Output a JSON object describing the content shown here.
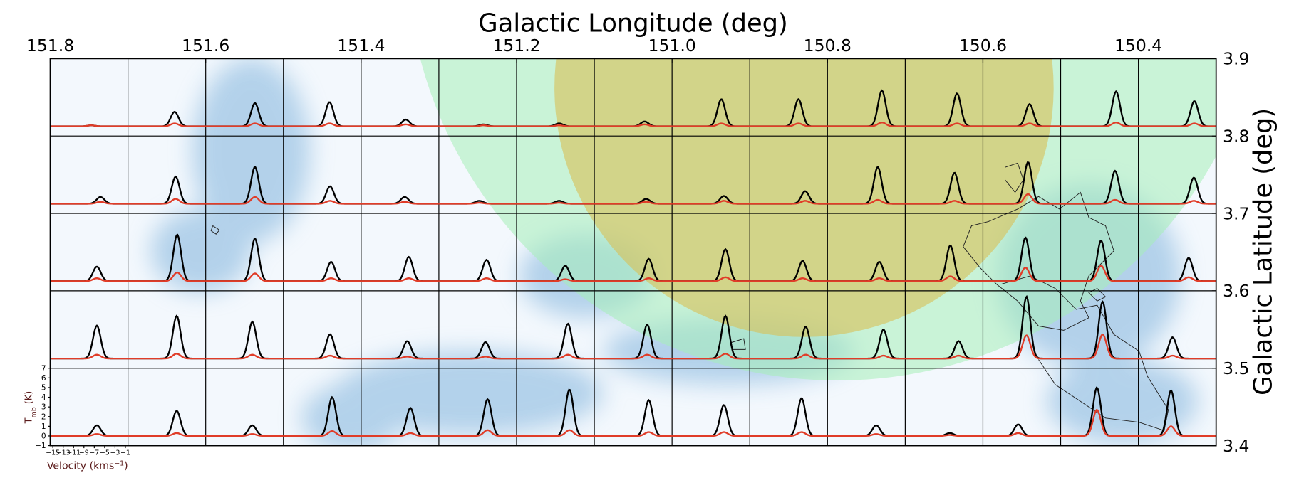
{
  "chart_data": {
    "type": "spectra-grid",
    "title": "Galactic Longitude (deg)",
    "ylabel": "Galactic Latitude (deg)",
    "xlim": [
      151.8,
      150.3
    ],
    "xticks": [
      151.8,
      151.6,
      151.4,
      151.2,
      {
        "value": 151.0,
        "label": "151.0"
      },
      150.8,
      150.6,
      150.4
    ],
    "ylim": [
      3.4,
      3.9
    ],
    "yticks": [
      3.4,
      3.5,
      3.6,
      3.7,
      3.8,
      3.9
    ],
    "inset": {
      "ylabel": {
        "main": "T",
        "sub": "mb",
        "unit": " (K)"
      },
      "xlabel": {
        "main": "Velocity (kms",
        "sup": "−1",
        "end": ")"
      },
      "xlim": [
        -15.5,
        -0.5
      ],
      "ylim": [
        -1,
        7
      ],
      "xticks": [
        {
          "value": -15,
          "label": "−15"
        },
        {
          "value": -13,
          "label": "−13"
        },
        {
          "value": -11,
          "label": "−11"
        },
        {
          "value": -9,
          "label": "−9"
        },
        {
          "value": -7,
          "label": "−7"
        },
        {
          "value": -5,
          "label": "−5"
        },
        {
          "value": -3,
          "label": "−3"
        },
        {
          "value": -1,
          "label": "−1"
        }
      ],
      "yticks": [
        {
          "value": -1,
          "label": "−1"
        },
        0,
        1,
        2,
        3,
        4,
        5,
        6,
        7
      ]
    },
    "velocities": [
      [
        -7.6,
        -6.5,
        -6.0,
        -6.6,
        -6.9,
        -6.9,
        -7.3,
        -5.8,
        -6.0,
        -6.1,
        -5.0,
        -5.5,
        -6.5,
        -4.8,
        -4.7
      ],
      [
        -5.8,
        -6.3,
        -6.0,
        -6.5,
        -7.1,
        -7.7,
        -7.3,
        -5.5,
        -5.5,
        -4.8,
        -5.8,
        -6.0,
        -6.8,
        -5.0,
        -4.8
      ],
      [
        -6.5,
        -6.0,
        -6.0,
        -6.3,
        -6.3,
        -6.3,
        -6.1,
        -5.0,
        -5.2,
        -5.3,
        -5.5,
        -6.8,
        -7.3,
        -7.7,
        -5.8
      ],
      [
        -6.5,
        -6.1,
        -6.5,
        -6.5,
        -6.6,
        -6.5,
        -5.6,
        -5.3,
        -5.2,
        -4.7,
        -4.7,
        -5.2,
        -7.1,
        -7.4,
        -8.9
      ],
      [
        -6.5,
        -6.1,
        -6.5,
        -6.1,
        -6.0,
        -6.1,
        -5.3,
        -5.0,
        -5.5,
        -5.5,
        -6.1,
        -6.9,
        -8.7,
        -8.5,
        -9.2
      ]
    ],
    "series": [
      {
        "color": "#000000",
        "values": [
          [
            0.1,
            1.5,
            2.4,
            2.5,
            0.7,
            0.2,
            0.3,
            0.5,
            2.8,
            2.8,
            3.7,
            3.4,
            2.3,
            3.6,
            2.6
          ],
          [
            0.7,
            2.8,
            3.8,
            1.8,
            0.7,
            0.3,
            0.3,
            0.5,
            0.8,
            1.3,
            3.8,
            3.2,
            4.3,
            3.4,
            2.7
          ],
          [
            1.5,
            4.8,
            4.4,
            2.0,
            2.5,
            2.2,
            1.6,
            2.3,
            3.3,
            2.1,
            2.0,
            3.7,
            4.5,
            4.2,
            2.4
          ],
          [
            3.4,
            4.4,
            3.8,
            2.5,
            1.8,
            1.7,
            3.6,
            3.5,
            4.4,
            3.3,
            3.0,
            1.8,
            6.4,
            5.9,
            2.2
          ],
          [
            1.1,
            2.6,
            1.1,
            4.0,
            2.9,
            3.8,
            4.8,
            3.7,
            3.2,
            3.9,
            1.1,
            0.3,
            1.2,
            5.0,
            4.7
          ]
        ]
      },
      {
        "color": "#e03c28",
        "values": [
          [
            0.1,
            0.3,
            0.3,
            0.3,
            0.2,
            0.1,
            0.1,
            0.2,
            0.3,
            0.3,
            0.4,
            0.3,
            0.3,
            0.4,
            0.3
          ],
          [
            0.2,
            0.5,
            0.7,
            0.3,
            0.2,
            0.1,
            0.1,
            0.2,
            0.3,
            0.3,
            0.4,
            0.3,
            1.0,
            0.4,
            0.3
          ],
          [
            0.3,
            0.9,
            0.8,
            0.3,
            0.3,
            0.3,
            0.2,
            0.3,
            0.4,
            0.3,
            0.3,
            0.5,
            1.4,
            1.6,
            0.4
          ],
          [
            0.4,
            0.5,
            0.4,
            0.3,
            0.2,
            0.2,
            0.4,
            0.4,
            0.5,
            0.4,
            0.3,
            0.3,
            2.4,
            2.5,
            0.3
          ],
          [
            0.2,
            0.3,
            0.2,
            0.5,
            0.3,
            0.6,
            0.6,
            0.4,
            0.4,
            0.4,
            0.2,
            0.1,
            0.3,
            2.7,
            1.0
          ]
        ]
      }
    ]
  }
}
